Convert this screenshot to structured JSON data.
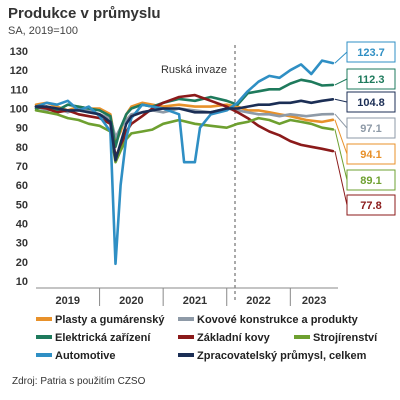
{
  "chart_data": {
    "type": "line",
    "title": "Produkce v průmyslu",
    "subtitle": "SA, 2019=100",
    "source": "Zdroj: Patria s použitím CZSO",
    "xlabel": "",
    "ylabel": "",
    "ylim": [
      10,
      130
    ],
    "y_ticks": [
      10,
      20,
      30,
      40,
      50,
      60,
      70,
      80,
      90,
      100,
      110,
      120,
      130
    ],
    "x_years": [
      "2019",
      "2020",
      "2021",
      "2022",
      "2023"
    ],
    "x_range": [
      2019.0,
      2023.75
    ],
    "legend_position": "bottom",
    "annotation": {
      "label": "Ruská invaze",
      "x": 2022.13
    },
    "series": [
      {
        "name": "Plasty a gumárenský",
        "color": "#e8912a",
        "end_label": "94.1",
        "x": [
          2019.0,
          2019.17,
          2019.33,
          2019.5,
          2019.67,
          2019.83,
          2020.0,
          2020.17,
          2020.25,
          2020.33,
          2020.42,
          2020.5,
          2020.67,
          2020.83,
          2021.0,
          2021.25,
          2021.5,
          2021.75,
          2022.0,
          2022.17,
          2022.33,
          2022.5,
          2022.67,
          2022.83,
          2023.0,
          2023.25,
          2023.5,
          2023.67
        ],
        "values": [
          102,
          103,
          101,
          99,
          101,
          100,
          100,
          97,
          82,
          88,
          97,
          101,
          103,
          102,
          101,
          102,
          101,
          101,
          102,
          101,
          99,
          99,
          98,
          97,
          96,
          94,
          93,
          94.1
        ]
      },
      {
        "name": "Kovové konstrukce a produkty",
        "color": "#8e9aa7",
        "end_label": "97.1",
        "x": [
          2019.0,
          2019.17,
          2019.33,
          2019.5,
          2019.67,
          2019.83,
          2020.0,
          2020.17,
          2020.25,
          2020.33,
          2020.42,
          2020.5,
          2020.67,
          2020.83,
          2021.0,
          2021.25,
          2021.5,
          2021.75,
          2022.0,
          2022.17,
          2022.33,
          2022.5,
          2022.67,
          2022.83,
          2023.0,
          2023.25,
          2023.5,
          2023.67
        ],
        "values": [
          101,
          99,
          100,
          98,
          100,
          99,
          97,
          95,
          85,
          90,
          94,
          97,
          98,
          99,
          98,
          100,
          99,
          98,
          100,
          99,
          98,
          97,
          97,
          96,
          97,
          96,
          97,
          97.1
        ]
      },
      {
        "name": "Elektrická zařízení",
        "color": "#1e7a5c",
        "end_label": "112.3",
        "x": [
          2019.0,
          2019.17,
          2019.33,
          2019.5,
          2019.67,
          2019.83,
          2020.0,
          2020.17,
          2020.25,
          2020.33,
          2020.42,
          2020.5,
          2020.67,
          2020.83,
          2021.0,
          2021.25,
          2021.5,
          2021.75,
          2022.0,
          2022.17,
          2022.33,
          2022.5,
          2022.67,
          2022.83,
          2023.0,
          2023.17,
          2023.33,
          2023.5,
          2023.67
        ],
        "values": [
          100,
          101,
          99,
          102,
          101,
          100,
          99,
          96,
          80,
          90,
          97,
          100,
          102,
          101,
          103,
          105,
          104,
          106,
          104,
          102,
          108,
          109,
          110,
          110,
          113,
          115,
          114,
          112,
          112.3
        ]
      },
      {
        "name": "Základní kovy",
        "color": "#8b1a1a",
        "end_label": "77.8",
        "x": [
          2019.0,
          2019.17,
          2019.33,
          2019.5,
          2019.67,
          2019.83,
          2020.0,
          2020.17,
          2020.25,
          2020.33,
          2020.42,
          2020.5,
          2020.67,
          2020.83,
          2021.0,
          2021.25,
          2021.5,
          2021.75,
          2022.0,
          2022.17,
          2022.33,
          2022.5,
          2022.67,
          2022.83,
          2023.0,
          2023.17,
          2023.33,
          2023.5,
          2023.67
        ],
        "values": [
          101,
          100,
          98,
          99,
          97,
          96,
          95,
          92,
          75,
          80,
          88,
          92,
          96,
          100,
          103,
          106,
          107,
          104,
          101,
          98,
          95,
          91,
          88,
          86,
          83,
          81,
          80,
          79,
          77.8
        ]
      },
      {
        "name": "Strojírenství",
        "color": "#6ea030",
        "end_label": "89.1",
        "x": [
          2019.0,
          2019.17,
          2019.33,
          2019.5,
          2019.67,
          2019.83,
          2020.0,
          2020.17,
          2020.25,
          2020.33,
          2020.42,
          2020.5,
          2020.67,
          2020.83,
          2021.0,
          2021.25,
          2021.5,
          2021.75,
          2022.0,
          2022.17,
          2022.33,
          2022.5,
          2022.67,
          2022.83,
          2023.0,
          2023.17,
          2023.33,
          2023.5,
          2023.67
        ],
        "values": [
          99,
          98,
          97,
          95,
          94,
          92,
          91,
          88,
          72,
          78,
          84,
          87,
          88,
          89,
          92,
          94,
          92,
          91,
          90,
          92,
          93,
          95,
          94,
          92,
          94,
          93,
          92,
          90,
          89.1
        ]
      },
      {
        "name": "Automotive",
        "color": "#2f8fc4",
        "end_label": "123.7",
        "x": [
          2019.0,
          2019.17,
          2019.33,
          2019.5,
          2019.67,
          2019.83,
          2020.0,
          2020.17,
          2020.25,
          2020.33,
          2020.42,
          2020.5,
          2020.67,
          2020.83,
          2021.0,
          2021.25,
          2021.33,
          2021.42,
          2021.5,
          2021.58,
          2021.75,
          2022.0,
          2022.17,
          2022.33,
          2022.5,
          2022.67,
          2022.83,
          2023.0,
          2023.17,
          2023.33,
          2023.5,
          2023.67
        ],
        "values": [
          101,
          103,
          102,
          104,
          99,
          101,
          96,
          88,
          19,
          60,
          85,
          95,
          102,
          101,
          100,
          97,
          72,
          72,
          72,
          90,
          97,
          99,
          103,
          109,
          114,
          117,
          116,
          120,
          123,
          118,
          125,
          123.7
        ]
      },
      {
        "name": "Zpracovatelský průmysl, celkem",
        "color": "#1b2e55",
        "end_label": "104.8",
        "x": [
          2019.0,
          2019.17,
          2019.33,
          2019.5,
          2019.67,
          2019.83,
          2020.0,
          2020.17,
          2020.25,
          2020.33,
          2020.42,
          2020.5,
          2020.67,
          2020.83,
          2021.0,
          2021.25,
          2021.5,
          2021.75,
          2022.0,
          2022.17,
          2022.33,
          2022.5,
          2022.67,
          2022.83,
          2023.0,
          2023.17,
          2023.33,
          2023.5,
          2023.67
        ],
        "values": [
          101,
          101,
          100,
          99,
          99,
          98,
          97,
          93,
          73,
          82,
          92,
          96,
          98,
          99,
          100,
          100,
          98,
          98,
          100,
          100,
          101,
          102,
          102,
          103,
          103,
          104,
          103,
          104,
          104.8
        ]
      }
    ]
  }
}
